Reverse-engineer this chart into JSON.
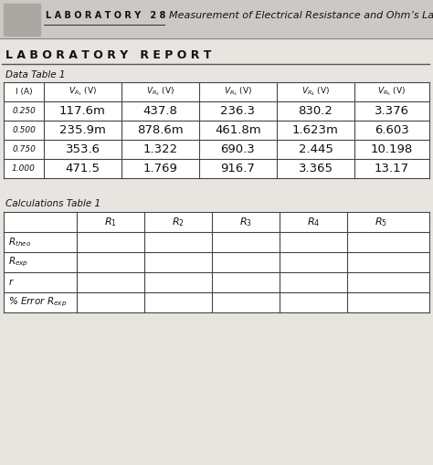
{
  "title_lab": "LABORATORY 28",
  "title_main": "Measurement of Electrical Resistance and Ohm’s Law",
  "section_header": "LABORATORY REPORT",
  "data_table_title": "Data Table 1",
  "calc_table_title": "Calculations Table 1",
  "data_table_col_headers": [
    "I (A)",
    "V_{R1} (V)",
    "V_{R2} (V)",
    "V_{R3} (V)",
    "V_{R4} (V)",
    "V_{R5} (V)"
  ],
  "data_table_rows": [
    [
      "0.250",
      "117.6m",
      "437.8",
      "236.3",
      "830.2",
      "3.376"
    ],
    [
      "0.500",
      "235.9m",
      "878.6m",
      "461.8m",
      "1.623m",
      "6.603"
    ],
    [
      "0.750",
      "353.6",
      "1.322",
      "690.3",
      "2.445",
      "10.198"
    ],
    [
      "1.000",
      "471.5",
      "1.769",
      "916.7",
      "3.365",
      "13.17"
    ]
  ],
  "calc_col_headers": [
    "",
    "R_1",
    "R_2",
    "R_3",
    "R_4",
    "R_5"
  ],
  "calc_row_labels": [
    "R_theo",
    "R_exp",
    "r",
    "% Error R_exp"
  ],
  "bg_color": "#e8e5e0",
  "white": "#ffffff",
  "line_color": "#444444",
  "dark": "#111111",
  "header_band_color": "#ccc9c4",
  "logo_color": "#aaa8a3"
}
